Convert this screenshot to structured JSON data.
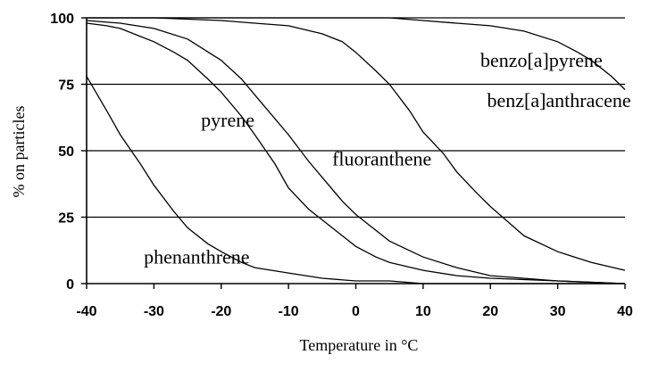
{
  "chart_data": {
    "type": "line",
    "title": "",
    "xlabel": "Temperature in °C",
    "ylabel": "% on particles",
    "xlim": [
      -40,
      40
    ],
    "ylim": [
      0,
      100
    ],
    "xticks": [
      -40,
      -30,
      -20,
      -10,
      0,
      10,
      20,
      30,
      40
    ],
    "yticks": [
      0,
      25,
      50,
      75,
      100
    ],
    "grid": "horizontal",
    "legend": "none",
    "series": [
      {
        "name": "phenanthrene",
        "x": [
          -40,
          -37,
          -35,
          -32,
          -30,
          -27,
          -25,
          -22,
          -20,
          -17,
          -15,
          -10,
          -5,
          0,
          5,
          10,
          20,
          30,
          40
        ],
        "y": [
          78,
          65,
          56,
          45,
          37,
          27,
          21,
          15,
          12,
          8,
          6,
          4,
          2,
          1,
          1,
          0,
          0,
          0,
          0
        ]
      },
      {
        "name": "pyrene",
        "x": [
          -40,
          -37,
          -35,
          -32,
          -30,
          -27,
          -25,
          -22,
          -20,
          -17,
          -15,
          -12,
          -10,
          -7,
          -5,
          -2,
          0,
          3,
          5,
          10,
          15,
          20,
          30,
          40
        ],
        "y": [
          98,
          97,
          96,
          93,
          91,
          87,
          84,
          77,
          72,
          63,
          56,
          45,
          36,
          28,
          24,
          18,
          14,
          10,
          8,
          5,
          3,
          2,
          1,
          0
        ]
      },
      {
        "name": "fluoranthene",
        "x": [
          -40,
          -35,
          -30,
          -25,
          -20,
          -17,
          -15,
          -12,
          -10,
          -7,
          -5,
          -2,
          0,
          3,
          5,
          10,
          15,
          20,
          30,
          40
        ],
        "y": [
          99,
          98,
          96,
          92,
          84,
          77,
          71,
          62,
          56,
          46,
          40,
          31,
          26,
          20,
          16,
          10,
          6,
          3,
          1,
          0
        ]
      },
      {
        "name": "benz[a]anthracene",
        "x": [
          -40,
          -30,
          -20,
          -15,
          -10,
          -5,
          -2,
          0,
          3,
          5,
          8,
          10,
          13,
          15,
          18,
          20,
          25,
          30,
          35,
          40
        ],
        "y": [
          100,
          100,
          99,
          98,
          97,
          94,
          91,
          87,
          80,
          75,
          65,
          57,
          49,
          42,
          34,
          29,
          18,
          12,
          8,
          5
        ]
      },
      {
        "name": "benzo[a]pyrene",
        "x": [
          -40,
          -20,
          -10,
          0,
          5,
          10,
          15,
          20,
          25,
          30,
          33,
          35,
          38,
          40
        ],
        "y": [
          100,
          100,
          100,
          100,
          100,
          99,
          98,
          97,
          95,
          91,
          87,
          84,
          78,
          73
        ]
      }
    ],
    "annotations": [
      {
        "text": "benzo[a]pyrene",
        "x": 18.5,
        "y": 81.5
      },
      {
        "text": "benz[a]anthracene",
        "x": 19.5,
        "y": 66.5
      },
      {
        "text": "pyrene",
        "x": -23,
        "y": 59
      },
      {
        "text": "fluoranthene",
        "x": -3.5,
        "y": 44.5
      },
      {
        "text": "phenanthrene",
        "x": -31.5,
        "y": 7.5
      }
    ]
  }
}
